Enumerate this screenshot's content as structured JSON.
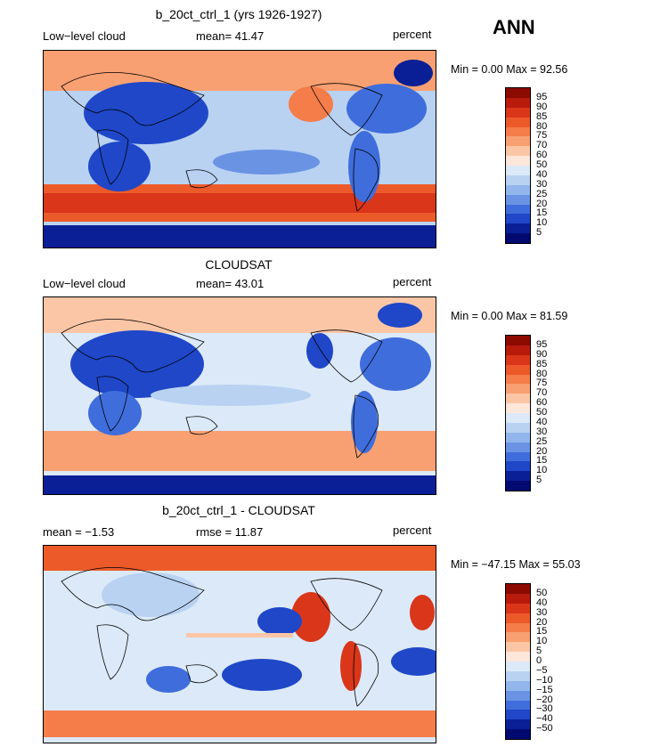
{
  "season": "ANN",
  "panels": [
    {
      "title": "b_20ct_ctrl_1 (yrs 1926-1927)",
      "left_label": "Low−level cloud",
      "center_label": "mean=  41.47",
      "units": "percent",
      "minmax": "Min =    0.00 Max =  92.56",
      "colorbar": [
        "95",
        "90",
        "85",
        "80",
        "75",
        "70",
        "60",
        "50",
        "40",
        "30",
        "25",
        "20",
        "15",
        "10",
        "5"
      ]
    },
    {
      "title": "CLOUDSAT",
      "left_label": "Low−level cloud",
      "center_label": "mean=  43.01",
      "units": "percent",
      "minmax": "Min =    0.00 Max =  81.59",
      "colorbar": [
        "95",
        "90",
        "85",
        "80",
        "75",
        "70",
        "60",
        "50",
        "40",
        "30",
        "25",
        "20",
        "15",
        "10",
        "5"
      ]
    },
    {
      "title": "b_20ct_ctrl_1 - CLOUDSAT",
      "left_label": "mean =  −1.53",
      "center_label": "rmse =  11.87",
      "units": "percent",
      "minmax": "Min = −47.15 Max =  55.03",
      "colorbar": [
        "50",
        "40",
        "30",
        "20",
        "15",
        "10",
        "5",
        "0",
        "−5",
        "−10",
        "−15",
        "−20",
        "−30",
        "−40",
        "−50"
      ]
    }
  ],
  "colors": [
    "#8c0a00",
    "#b81a0c",
    "#d9361a",
    "#ec5a2a",
    "#f47d4a",
    "#f8a072",
    "#fbc6a6",
    "#fde6da",
    "#dce9f8",
    "#b9d2f2",
    "#92b6ec",
    "#6a93e4",
    "#3f6ddc",
    "#1f47c8",
    "#0a1f96",
    "#020a70"
  ]
}
